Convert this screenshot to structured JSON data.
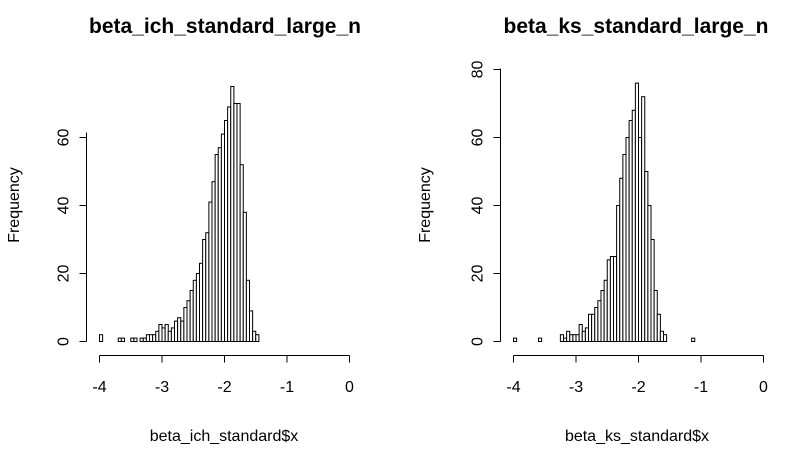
{
  "chart_data": [
    {
      "type": "bar",
      "subtype": "histogram",
      "title": "beta_ich_standard_large_n",
      "xlabel": "beta_ich_standard$x",
      "ylabel": "Frequency",
      "xlim": [
        -4,
        0
      ],
      "ylim": [
        0,
        80
      ],
      "xticks": [
        "-4",
        "-3",
        "-2",
        "-1",
        "0"
      ],
      "yticks": [
        "0",
        "20",
        "40",
        "60"
      ],
      "bin_start": -4.0,
      "bin_width": 0.05,
      "values": [
        2,
        0,
        0,
        0,
        0,
        0,
        1,
        1,
        0,
        0,
        1,
        1,
        0,
        1,
        1,
        2,
        2,
        2,
        3,
        5,
        4,
        5,
        3,
        4,
        6,
        7,
        6,
        10,
        12,
        15,
        18,
        20,
        23,
        30,
        32,
        41,
        47,
        55,
        57,
        61,
        65,
        69,
        75,
        70,
        70,
        52,
        38,
        18,
        9,
        3,
        2
      ]
    },
    {
      "type": "bar",
      "subtype": "histogram",
      "title": "beta_ks_standard_large_n",
      "xlabel": "beta_ks_standard$x",
      "ylabel": "Frequency",
      "xlim": [
        -4,
        0
      ],
      "ylim": [
        0,
        80
      ],
      "xticks": [
        "-4",
        "-3",
        "-2",
        "-1",
        "0"
      ],
      "yticks": [
        "0",
        "20",
        "40",
        "60",
        "80"
      ],
      "bin_start": -4.0,
      "bin_width": 0.05,
      "values": [
        1,
        0,
        0,
        0,
        0,
        0,
        0,
        0,
        1,
        0,
        0,
        0,
        0,
        0,
        0,
        2,
        1,
        3,
        2,
        2,
        2,
        5,
        3,
        4,
        8,
        8,
        10,
        12,
        15,
        18,
        24,
        25,
        25,
        40,
        48,
        55,
        60,
        65,
        68,
        76,
        60,
        72,
        50,
        40,
        30,
        15,
        8,
        3,
        2,
        0,
        0,
        0,
        0,
        0,
        0,
        0,
        0,
        1
      ]
    }
  ]
}
